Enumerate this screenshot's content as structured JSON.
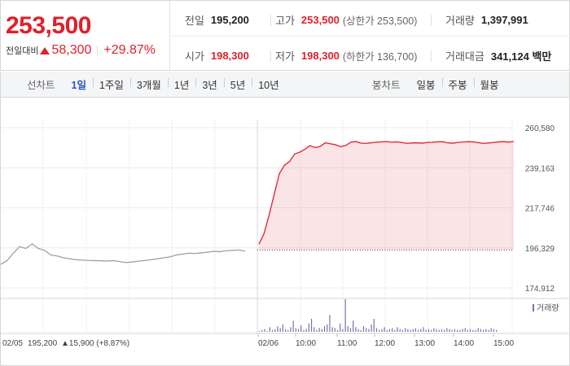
{
  "quote": {
    "price": "253,500",
    "prev_label": "전일대비",
    "change": "58,300",
    "change_pct": "+29.87%",
    "prev_close_label": "전일",
    "prev_close": "195,200",
    "high_label": "고가",
    "high": "253,500",
    "upper_limit": "(상한가 253,500)",
    "volume_label": "거래량",
    "volume": "1,397,991",
    "open_label": "시가",
    "open": "198,300",
    "low_label": "저가",
    "low": "198,300",
    "lower_limit": "(하한가 136,700)",
    "amount_label": "거래대금",
    "amount": "341,124 백만"
  },
  "tabs": {
    "line_title": "선차트",
    "line": [
      "1일",
      "1주일",
      "3개월",
      "1년",
      "3년",
      "5년",
      "10년"
    ],
    "candle_title": "봉차트",
    "candle": [
      "일봉",
      "주봉",
      "월봉"
    ]
  },
  "colors": {
    "up": "#e0202b",
    "accent": "#2a54c8",
    "prev_day_line": "#a0a0a0",
    "volume": "#7b6fb0"
  },
  "chart_data": {
    "type": "line",
    "y_ticks": [
      "260,580",
      "239,163",
      "217,746",
      "196,329",
      "174,912"
    ],
    "ylim": [
      174912,
      260580
    ],
    "prev_close": 195200,
    "x_ticks": [
      "02/06",
      "10:00",
      "11:00",
      "12:00",
      "13:00",
      "14:00",
      "15:00"
    ],
    "prev_day_label": "02/05",
    "prev_day_close": "195,200",
    "prev_day_change": "▲15,900 (+8.87%)",
    "volume_legend": "거래량",
    "series": [
      {
        "values": [
          187500,
          189500,
          193500,
          197000,
          196000,
          198500,
          196000,
          195000,
          192500,
          192000,
          191000,
          190500,
          190000,
          189800,
          189600,
          189500,
          189400,
          189300,
          189500,
          189000,
          188500,
          188800,
          189200,
          189600,
          190000,
          190500,
          191000,
          191500,
          192500,
          193000,
          193500,
          193300,
          193700,
          194000,
          194500,
          194300,
          194800,
          195000,
          195200,
          194600
        ]
      },
      {
        "values": [
          198300,
          204000,
          214000,
          225000,
          236000,
          240500,
          242500,
          246500,
          247500,
          249000,
          251000,
          250000,
          250500,
          252500,
          252000,
          251500,
          250500,
          251000,
          252800,
          253200,
          252300,
          252200,
          252500,
          252800,
          253000,
          253200,
          252800,
          253000,
          252700,
          252200,
          252400,
          252500,
          252300,
          252700,
          252800,
          253000,
          253100,
          252500,
          252300,
          252700,
          252900,
          253100,
          253000,
          252600,
          252200,
          252400,
          252700,
          253000,
          253100,
          252900,
          253200
        ]
      }
    ],
    "volume": [
      1,
      2,
      3,
      1,
      5,
      2,
      3,
      6,
      4,
      8,
      3,
      2,
      5,
      12,
      4,
      3,
      7,
      2,
      3,
      9,
      14,
      5,
      2,
      4,
      3,
      6,
      8,
      18,
      5,
      4,
      2,
      9,
      3,
      35,
      6,
      4,
      12,
      5,
      3,
      2,
      6,
      4,
      3,
      8,
      14,
      4,
      2,
      3,
      5,
      2,
      3,
      4,
      2,
      5,
      3,
      2,
      4,
      3,
      2,
      3,
      4,
      2,
      3,
      5,
      2,
      3,
      2,
      4,
      3,
      2,
      3,
      2,
      4,
      3,
      2,
      3,
      2,
      2,
      3,
      4,
      2,
      3,
      2,
      2,
      4,
      3,
      2,
      3,
      2,
      4,
      3,
      2
    ]
  }
}
